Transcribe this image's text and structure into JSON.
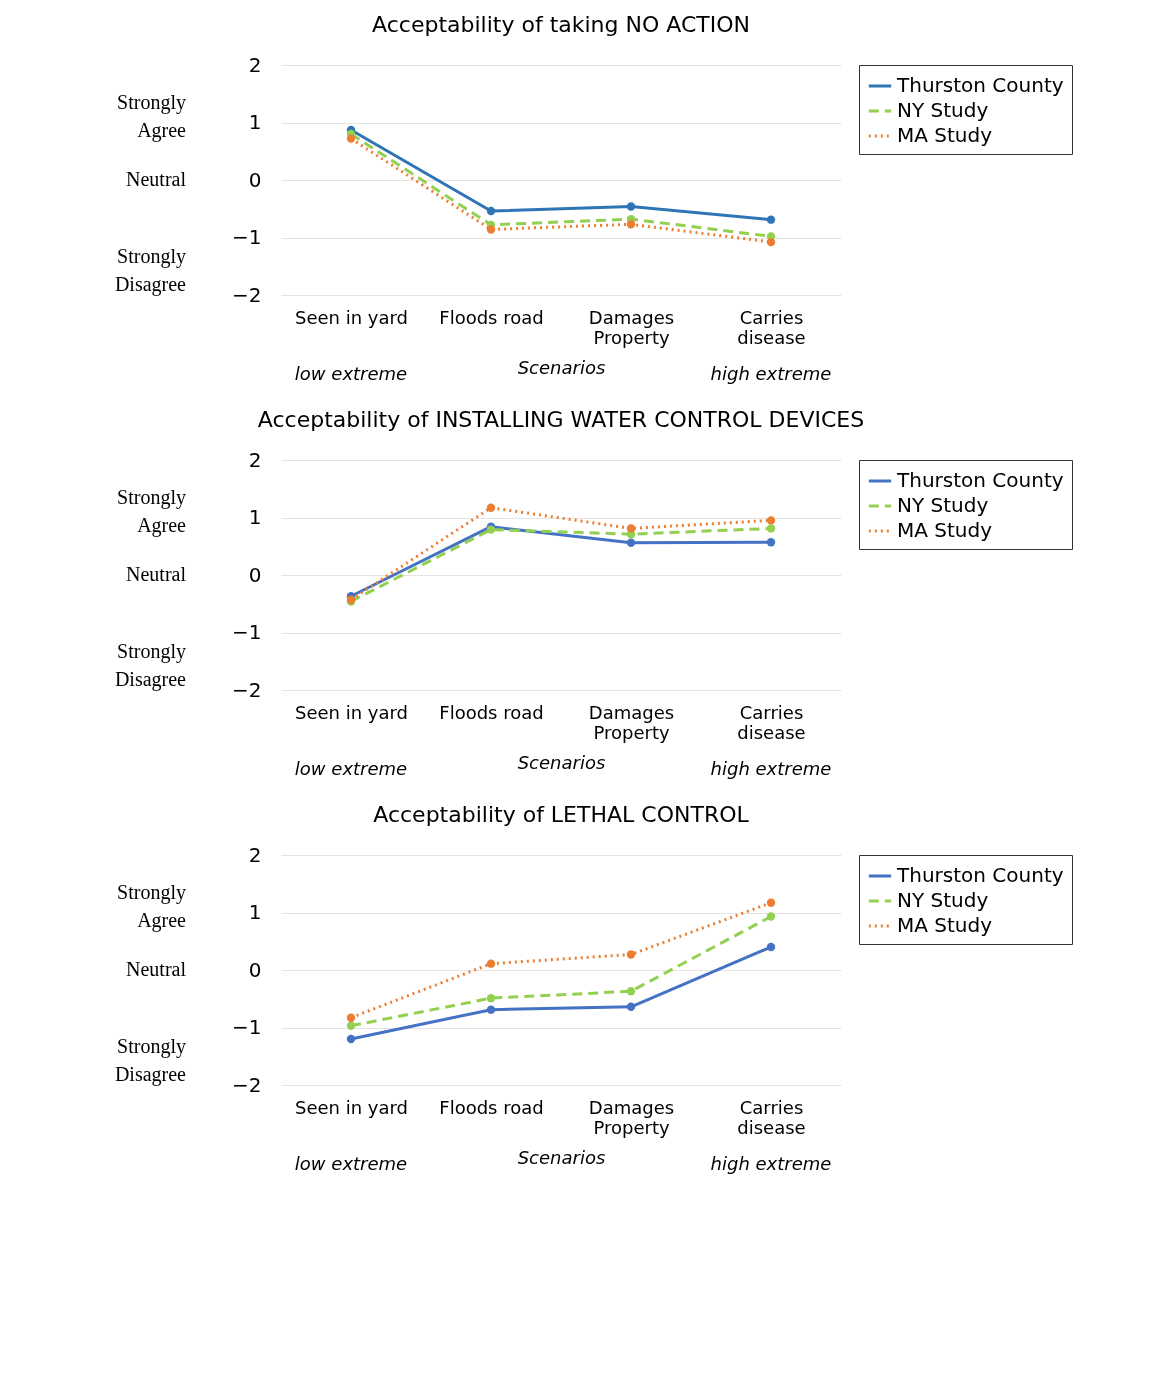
{
  "chart_data": [
    {
      "type": "line",
      "title": "Acceptability of taking NO ACTION",
      "xlabel": "Scenarios",
      "categories": [
        "Seen in yard",
        "Floods road",
        "Damages Property",
        "Carries disease"
      ],
      "ylim": [
        -2,
        2
      ],
      "yticks": [
        -2,
        -1,
        0,
        1,
        2
      ],
      "grid": "y",
      "legend": "right",
      "marker": "circle",
      "annotations": [
        "Strongly Agree",
        "Neutral",
        "Strongly Disagree",
        "low extreme",
        "high extreme"
      ],
      "series": [
        {
          "name": "Thurston County",
          "color": "#2e75b6",
          "line_style": "solid",
          "values": [
            0.87,
            -0.54,
            -0.46,
            -0.69
          ]
        },
        {
          "name": "NY Study",
          "color": "#92d050",
          "line_style": "dashed",
          "values": [
            0.8,
            -0.78,
            -0.68,
            -0.98
          ]
        },
        {
          "name": "MA Study",
          "color": "#ed7d31",
          "line_style": "dotted",
          "values": [
            0.72,
            -0.86,
            -0.77,
            -1.08
          ]
        }
      ]
    },
    {
      "type": "line",
      "title": "Acceptability of INSTALLING  WATER CONTROL DEVICES",
      "xlabel": "Scenarios",
      "categories": [
        "Seen in yard",
        "Floods road",
        "Damages Property",
        "Carries disease"
      ],
      "ylim": [
        -2,
        2
      ],
      "yticks": [
        -2,
        -1,
        0,
        1,
        2
      ],
      "grid": "y",
      "legend": "right",
      "marker": "circle",
      "annotations": [
        "Strongly Agree",
        "Neutral",
        "Strongly Disagree",
        "low extreme",
        "high extreme"
      ],
      "series": [
        {
          "name": "Thurston County",
          "color": "#4472c4",
          "line_style": "solid",
          "values": [
            -0.37,
            0.84,
            0.56,
            0.57
          ]
        },
        {
          "name": "NY Study",
          "color": "#92d050",
          "line_style": "dashed",
          "values": [
            -0.46,
            0.79,
            0.71,
            0.81
          ]
        },
        {
          "name": "MA Study",
          "color": "#ed7d31",
          "line_style": "dotted",
          "values": [
            -0.43,
            1.17,
            0.81,
            0.95
          ]
        }
      ]
    },
    {
      "type": "line",
      "title": "Acceptability of LETHAL CONTROL",
      "xlabel": "Scenarios",
      "categories": [
        "Seen in yard",
        "Floods road",
        "Damages Property",
        "Carries disease"
      ],
      "ylim": [
        -2,
        2
      ],
      "yticks": [
        -2,
        -1,
        0,
        1,
        2
      ],
      "grid": "y",
      "legend": "right",
      "marker": "circle",
      "annotations": [
        "Strongly Agree",
        "Neutral",
        "Strongly Disagree",
        "low extreme",
        "high extreme"
      ],
      "series": [
        {
          "name": "Thurston County",
          "color": "#4472c4",
          "line_style": "solid",
          "values": [
            -1.2,
            -0.69,
            -0.64,
            0.4
          ]
        },
        {
          "name": "NY Study",
          "color": "#92d050",
          "line_style": "dashed",
          "values": [
            -0.97,
            -0.49,
            -0.37,
            0.93
          ]
        },
        {
          "name": "MA Study",
          "color": "#ed7d31",
          "line_style": "dotted",
          "values": [
            -0.83,
            0.11,
            0.27,
            1.17
          ]
        }
      ]
    }
  ]
}
